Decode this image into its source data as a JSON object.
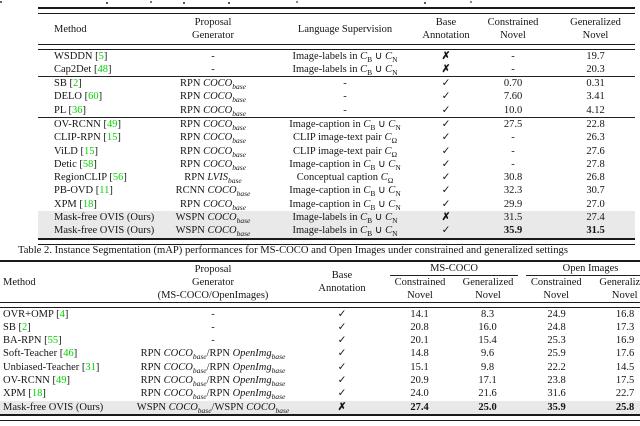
{
  "colors": {
    "cite_green": "#00d400",
    "highlight_gray": "#e9e9e9",
    "rule": "#1a1a1a"
  },
  "table1": {
    "header": {
      "method": "Method",
      "proposal_l1": "Proposal",
      "proposal_l2": "Generator",
      "language": "Language Supervision",
      "base_l1": "Base",
      "base_l2": "Annotation",
      "constrained_l1": "Constrained",
      "constrained_l2": "Novel",
      "generalized_l1": "Generalized",
      "generalized_l2": "Novel"
    },
    "rows": [
      {
        "method": "WSDDN [{{5}}]",
        "proposal": "-",
        "language": "Image-labels in *C*~B~ ∪ *C*~N~",
        "base": "**✗**",
        "constrained": "-",
        "generalized": "19.7"
      },
      {
        "method": "Cap2Det [{{48}}]",
        "proposal": "-",
        "language": "Image-labels in *C*~B~ ∪ *C*~N~",
        "base": "**✗**",
        "constrained": "-",
        "generalized": "20.3"
      },
      {
        "method": "SB [{{2}}]",
        "proposal": "RPN *COCO*~*base*~",
        "language": "-",
        "base": "✓",
        "constrained": "0.70",
        "generalized": "0.31"
      },
      {
        "method": "DELO [{{60}}]",
        "proposal": "RPN *COCO*~*base*~",
        "language": "-",
        "base": "✓",
        "constrained": "7.60",
        "generalized": "3.41"
      },
      {
        "method": "PL [{{36}}]",
        "proposal": "RPN *COCO*~*base*~",
        "language": "-",
        "base": "✓",
        "constrained": "10.0",
        "generalized": "4.12"
      },
      {
        "method": "OV-RCNN [{{49}}]",
        "proposal": "RPN *COCO*~*base*~",
        "language": "Image-caption in *C*~B~ ∪ *C*~N~",
        "base": "✓",
        "constrained": "27.5",
        "generalized": "22.8"
      },
      {
        "method": "CLIP-RPN [{{15}}]",
        "proposal": "RPN *COCO*~*base*~",
        "language": "CLIP image-text pair *C*~Ω~",
        "base": "✓",
        "constrained": "-",
        "generalized": "26.3"
      },
      {
        "method": "ViLD [{{15}}]",
        "proposal": "RPN *COCO*~*base*~",
        "language": "CLIP image-text pair *C*~Ω~",
        "base": "✓",
        "constrained": "-",
        "generalized": "27.6"
      },
      {
        "method": "Detic [{{58}}]",
        "proposal": "RPN *COCO*~*base*~",
        "language": "Image-caption in *C*~B~ ∪ *C*~N~",
        "base": "✓",
        "constrained": "-",
        "generalized": "27.8"
      },
      {
        "method": "RegionCLIP [{{56}}]",
        "proposal": "RPN *LVIS*~*base*~",
        "language": "Conceptual caption *C*~Ω~",
        "base": "✓",
        "constrained": "30.8",
        "generalized": "26.8"
      },
      {
        "method": "PB-OVD [{{11}}]",
        "proposal": "RCNN *COCO*~*base*~",
        "language": "Image-caption in *C*~B~ ∪ *C*~N~",
        "base": "✓",
        "constrained": "32.3",
        "generalized": "30.7"
      },
      {
        "method": "XPM [{{18}}]",
        "proposal": "RPN *COCO*~*base*~",
        "language": "Image-caption in *C*~B~ ∪ *C*~N~",
        "base": "✓",
        "constrained": "29.9",
        "generalized": "27.0"
      },
      {
        "method": "Mask-free OVIS (Ours)",
        "proposal": "WSPN *COCO*~*base*~",
        "language": "Image-labels in *C*~B~ ∪ *C*~N~",
        "base": "**✗**",
        "constrained": "31.5",
        "generalized": "27.4"
      },
      {
        "method": "Mask-free OVIS (Ours)",
        "proposal": "WSPN *COCO*~*base*~",
        "language": "Image-labels in *C*~B~ ∪ *C*~N~",
        "base": "✓",
        "constrained": "**35.9**",
        "generalized": "**31.5**"
      }
    ]
  },
  "table2": {
    "caption": "Table 2. Instance Segmentation (mAP) performances for MS-COCO and Open Images under constrained and generalized settings",
    "header": {
      "method": "Method",
      "proposal_l1": "Proposal",
      "proposal_l2": "Generator",
      "proposal_l3": "(MS-COCO/OpenImages)",
      "base_l1": "Base",
      "base_l2": "Annotation",
      "group1": "MS-COCO",
      "group2": "Open Images",
      "sub_constrained": "Constrained",
      "sub_generalized": "Generalized",
      "sub_novel": "Novel"
    },
    "rows": [
      {
        "method": "OVR+OMP [{{4}}]",
        "proposal": "-",
        "base": "✓",
        "mscoco_constrained": "14.1",
        "mscoco_generalized": "8.3",
        "oi_constrained": "24.9",
        "oi_generalized": "16.8"
      },
      {
        "method": "SB [{{2}}]",
        "proposal": "-",
        "base": "✓",
        "mscoco_constrained": "20.8",
        "mscoco_generalized": "16.0",
        "oi_constrained": "24.8",
        "oi_generalized": "17.3"
      },
      {
        "method": "BA-RPN [{{55}}]",
        "proposal": "-",
        "base": "✓",
        "mscoco_constrained": "20.1",
        "mscoco_generalized": "15.4",
        "oi_constrained": "25.3",
        "oi_generalized": "16.9"
      },
      {
        "method": "Soft-Teacher [{{46}}]",
        "proposal": "RPN *COCO*~*base*~/RPN *OpenImg*~*base*~",
        "base": "✓",
        "mscoco_constrained": "14.8",
        "mscoco_generalized": "9.6",
        "oi_constrained": "25.9",
        "oi_generalized": "17.6"
      },
      {
        "method": "Unbiased-Teacher [{{31}}]",
        "proposal": "RPN *COCO*~*base*~/RPN *OpenImg*~*base*~",
        "base": "✓",
        "mscoco_constrained": "15.1",
        "mscoco_generalized": "9.8",
        "oi_constrained": "22.2",
        "oi_generalized": "14.5"
      },
      {
        "method": "OV-RCNN [{{49}}]",
        "proposal": "RPN *COCO*~*base*~/RPN *OpenImg*~*base*~",
        "base": "✓",
        "mscoco_constrained": "20.9",
        "mscoco_generalized": "17.1",
        "oi_constrained": "23.8",
        "oi_generalized": "17.5"
      },
      {
        "method": "XPM [{{18}}]",
        "proposal": "RPN *COCO*~*base*~/RPN *OpenImg*~*base*~",
        "base": "✓",
        "mscoco_constrained": "24.0",
        "mscoco_generalized": "21.6",
        "oi_constrained": "31.6",
        "oi_generalized": "22.7"
      },
      {
        "method": "Mask-free OVIS (Ours)",
        "proposal": "WSPN *COCO*~*base*~/WSPN *COCO*~*base*~",
        "base": "**✗**",
        "mscoco_constrained": "**27.4**",
        "mscoco_generalized": "**25.0**",
        "oi_constrained": "**35.9**",
        "oi_generalized": "**25.8**"
      }
    ]
  }
}
